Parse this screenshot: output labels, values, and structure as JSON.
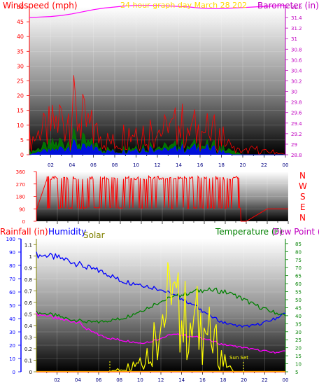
{
  "panel_top": {
    "title_left": "Windspeed (mph)",
    "title_center": "24 hour graph day   March 28 202",
    "title_right": "Barometer (in)",
    "colors": {
      "left": "#ff0000",
      "center": "#ffd800",
      "right": "#c000c0"
    }
  },
  "panel_mid": {
    "direction_labels": [
      "N",
      "W",
      "S",
      "E",
      "N"
    ]
  },
  "panel_bottom": {
    "title_rainfall": "Rainfall (in)",
    "title_humidity": "Humidity",
    "title_solar": "Solar",
    "title_temperature": "Temperature (F)",
    "title_dewpoint": "Dew Point (",
    "sunset_label": "Sun Set",
    "colors": {
      "rain": "#ff0000",
      "humidity": "#0000ff",
      "solar": "#808000",
      "temperature": "#008000",
      "dewpoint": "#c000c0"
    }
  },
  "x_ticks": [
    "02",
    "04",
    "06",
    "08",
    "10",
    "12",
    "14",
    "16",
    "18",
    "20",
    "22",
    "00"
  ],
  "chart_data": [
    {
      "type": "line",
      "name": "wind-barometer",
      "y_left": {
        "label": "Windspeed (mph)",
        "ticks": [
          0,
          5,
          10,
          15,
          20,
          25,
          30,
          35,
          40,
          45,
          50
        ],
        "ylim": [
          0,
          50
        ]
      },
      "y_right": {
        "label": "Barometer (in)",
        "ticks": [
          "28.8",
          "29",
          "29.2",
          "29.4",
          "29.6",
          "29.8",
          "30",
          "30.2",
          "30.4",
          "30.6",
          "30.8",
          "31",
          "31.2",
          "31.4",
          "31.6"
        ],
        "ylim": [
          28.8,
          31.6
        ]
      },
      "x": [
        0,
        1,
        2,
        3,
        4,
        5,
        6,
        7,
        8,
        9,
        10,
        11,
        12,
        13,
        14,
        15,
        16,
        17,
        18,
        19,
        20,
        21,
        22,
        23,
        24
      ],
      "series": [
        {
          "name": "Barometer",
          "axis": "right",
          "color": "#ff00ff",
          "values": [
            31.4,
            31.41,
            31.42,
            31.44,
            31.47,
            31.51,
            31.55,
            31.58,
            31.6,
            31.62,
            31.63,
            31.63,
            31.63,
            31.62,
            31.61,
            31.6,
            31.58,
            31.57,
            31.57,
            31.58,
            31.59,
            31.6,
            31.61,
            31.62,
            31.63
          ]
        },
        {
          "name": "Wind gust",
          "axis": "left",
          "color": "#ff0000",
          "values": [
            5,
            7,
            9,
            12,
            15,
            11,
            8,
            5,
            4,
            7,
            9,
            8,
            9,
            7,
            10,
            9,
            8,
            8,
            6,
            2,
            1,
            2,
            1,
            1,
            0
          ]
        },
        {
          "name": "Wind average",
          "axis": "left",
          "color": "#008000",
          "values": [
            1,
            2,
            3,
            4,
            5,
            4,
            3,
            2,
            1,
            2,
            3,
            3,
            3,
            2,
            3,
            3,
            3,
            3,
            2,
            1,
            0,
            0,
            0,
            0,
            0
          ]
        },
        {
          "name": "Wind speed",
          "axis": "left",
          "color": "#0000ff",
          "values": [
            0,
            1,
            1,
            2,
            3,
            2,
            2,
            1,
            1,
            1,
            2,
            2,
            2,
            1,
            2,
            2,
            2,
            2,
            1,
            0,
            0,
            0,
            0,
            0,
            0
          ]
        }
      ]
    },
    {
      "type": "line",
      "name": "wind-direction",
      "y_left": {
        "ticks": [
          0,
          90,
          180,
          270,
          360
        ],
        "ylim": [
          0,
          360
        ]
      },
      "x": [
        0,
        1,
        1.2,
        2,
        3,
        4,
        5,
        6,
        7,
        8,
        9,
        10,
        11,
        12,
        13,
        14,
        15,
        16,
        17,
        18,
        19,
        19.5,
        20,
        22,
        24
      ],
      "series": [
        {
          "name": "Wind direction",
          "color": "#ff0000",
          "values": [
            80,
            90,
            330,
            340,
            310,
            320,
            300,
            330,
            80,
            330,
            70,
            330,
            320,
            340,
            330,
            320,
            80,
            330,
            320,
            330,
            330,
            0,
            0,
            90,
            90
          ]
        }
      ]
    },
    {
      "type": "line",
      "name": "rain-humidity-solar-temperature",
      "y_rain": {
        "label": "Rainfall (in)",
        "ticks": [
          "0",
          "0.1",
          "0.2",
          "0.3",
          "0.4",
          "0.5",
          "0.6",
          "0.7",
          "0.8",
          "0.9",
          "1",
          "1.1"
        ],
        "ylim": [
          0,
          1.15
        ]
      },
      "y_humidity": {
        "label": "Humidity",
        "ticks": [
          0,
          10,
          20,
          30,
          40,
          50,
          60,
          70,
          80,
          90,
          100
        ],
        "ylim": [
          0,
          100
        ]
      },
      "y_right": {
        "label": "Temperature (F)",
        "ticks": [
          5,
          10,
          15,
          20,
          25,
          30,
          35,
          40,
          45,
          50,
          55,
          60,
          65,
          70,
          75,
          80,
          85
        ],
        "ylim": [
          5,
          88
        ]
      },
      "x": [
        0,
        1,
        2,
        3,
        4,
        5,
        6,
        7,
        8,
        9,
        10,
        11,
        12,
        13,
        14,
        15,
        16,
        17,
        18,
        19,
        20,
        21,
        22,
        23,
        24
      ],
      "series": [
        {
          "name": "Humidity",
          "axis": "humidity",
          "color": "#0000ff",
          "values": [
            88,
            87,
            86,
            84,
            81,
            78,
            76,
            73,
            69,
            67,
            66,
            64,
            62,
            58,
            55,
            51,
            46,
            41,
            37,
            35,
            34,
            35,
            37,
            40,
            44
          ]
        },
        {
          "name": "Temperature",
          "axis": "right",
          "color": "#008000",
          "values": [
            42,
            41,
            40,
            38,
            37,
            36,
            36,
            37,
            38,
            40,
            43,
            46,
            49,
            51,
            53,
            55,
            56,
            56,
            55,
            53,
            50,
            47,
            44,
            42,
            40
          ]
        },
        {
          "name": "Dew point",
          "axis": "right",
          "color": "#ff00ff",
          "values": [
            41,
            40,
            38,
            37,
            36,
            31,
            28,
            26,
            25,
            24,
            23,
            24,
            26,
            28,
            28,
            27,
            26,
            24,
            22,
            21,
            20,
            19,
            18,
            17,
            18
          ]
        },
        {
          "name": "Solar",
          "axis": "rain",
          "color": "#ffff00",
          "values": [
            0,
            0,
            0,
            0,
            0,
            0,
            0,
            0,
            0.02,
            0.05,
            0.12,
            0.2,
            0.5,
            0.55,
            0.45,
            0.42,
            0.4,
            0.28,
            0.1,
            0,
            0,
            0,
            0,
            0,
            0
          ]
        },
        {
          "name": "Rainfall",
          "axis": "rain",
          "color": "#ff0000",
          "values": [
            0,
            0,
            0,
            0,
            0,
            0,
            0,
            0,
            0,
            0,
            0,
            0,
            0,
            0,
            0,
            0,
            0,
            0,
            0,
            0,
            0,
            0,
            0,
            0,
            0
          ]
        }
      ]
    }
  ]
}
